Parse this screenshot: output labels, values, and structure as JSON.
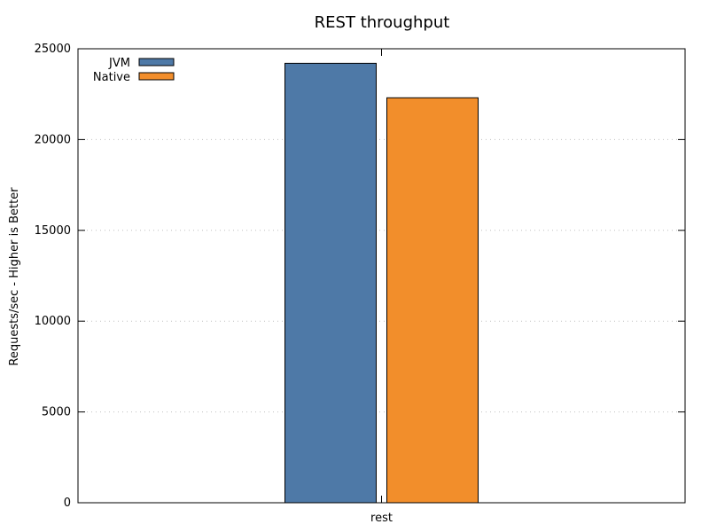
{
  "chart_data": {
    "type": "bar",
    "title": "REST throughput",
    "xlabel": "",
    "ylabel": "Requests/sec - Higher is Better",
    "categories": [
      "rest"
    ],
    "series": [
      {
        "name": "JVM",
        "color": "#4e79a7",
        "values": [
          24200
        ]
      },
      {
        "name": "Native",
        "color": "#f28e2b",
        "values": [
          22300
        ]
      }
    ],
    "ylim": [
      0,
      25000
    ],
    "yticks": [
      0,
      5000,
      10000,
      15000,
      20000,
      25000
    ],
    "grid": "y-dotted",
    "legend_position": "top-left"
  }
}
